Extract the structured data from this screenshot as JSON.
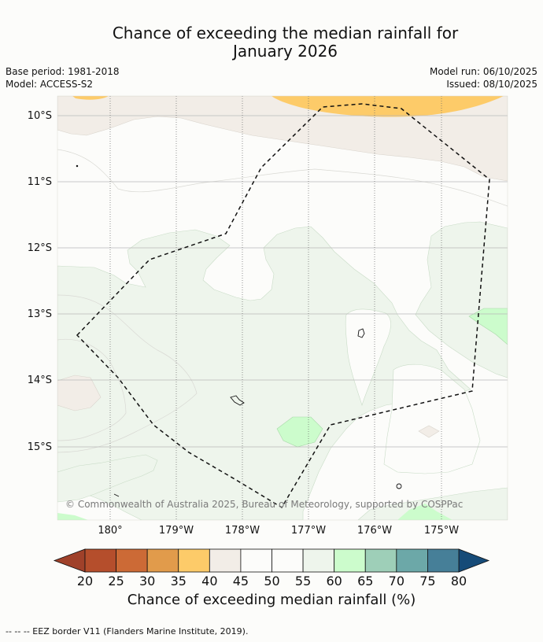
{
  "title": {
    "line1": "Chance of exceeding the median rainfall for",
    "line2": "January 2026"
  },
  "meta": {
    "base_period": "Base period: 1981-2018",
    "model": "Model: ACCESS-S2",
    "model_run": "Model run: 06/10/2025",
    "issued": "Issued: 08/10/2025"
  },
  "map": {
    "lat_labels": [
      "10°S",
      "11°S",
      "12°S",
      "13°S",
      "14°S",
      "15°S"
    ],
    "lon_labels": [
      "180°",
      "179°W",
      "178°W",
      "177°W",
      "176°W",
      "175°W"
    ],
    "credit": "© Commonwealth of Australia 2025, Bureau of Meteorology, supported by COSPPac"
  },
  "colorbar": {
    "ticks": [
      "20",
      "25",
      "30",
      "35",
      "40",
      "45",
      "50",
      "55",
      "60",
      "65",
      "70",
      "75",
      "80"
    ],
    "title": "Chance of exceeding median rainfall (%)",
    "colors": [
      "#a0412a",
      "#b54e2c",
      "#cc6a36",
      "#e19b4b",
      "#fdcb69",
      "#f2ede7",
      "#fcfcfa",
      "#fcfcfa",
      "#eef5ec",
      "#ccfccc",
      "#9ecfb8",
      "#6ca8a8",
      "#467f98",
      "#164b78"
    ]
  },
  "footer": {
    "legend": "--  --  -- EEZ border V11 (Flanders Marine Institute, 2019)."
  }
}
